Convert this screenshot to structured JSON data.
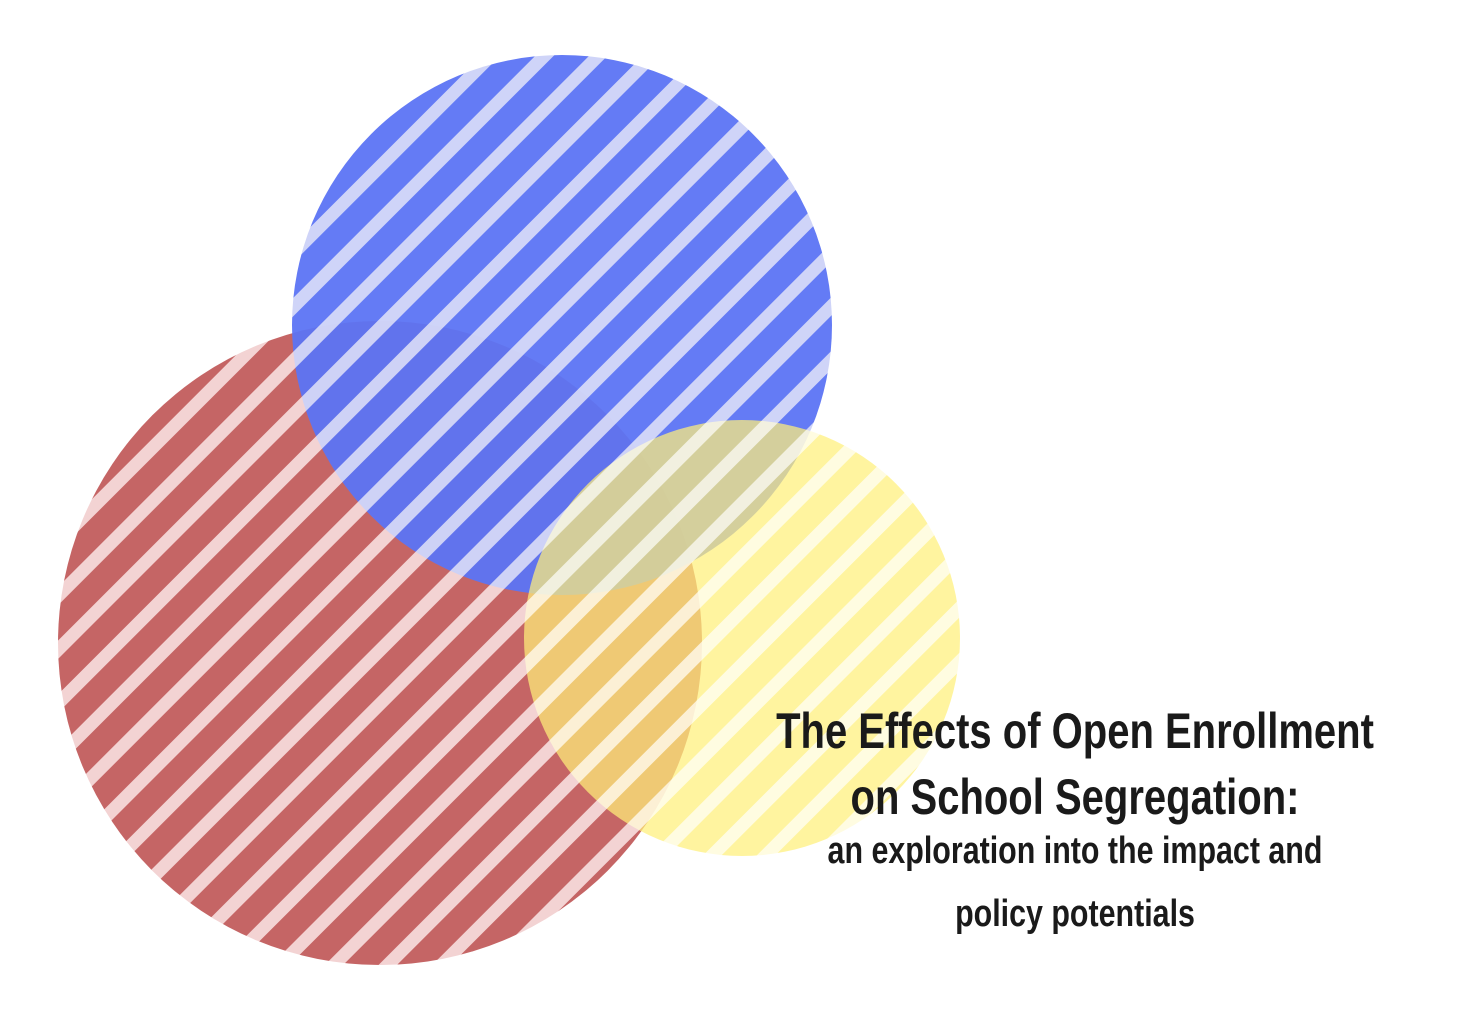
{
  "title": {
    "lines": [
      "The Effects of Open Enrollment",
      "on School Segregation:"
    ]
  },
  "subtitle": {
    "lines": [
      "an exploration into the impact and",
      "policy potentials"
    ]
  }
}
